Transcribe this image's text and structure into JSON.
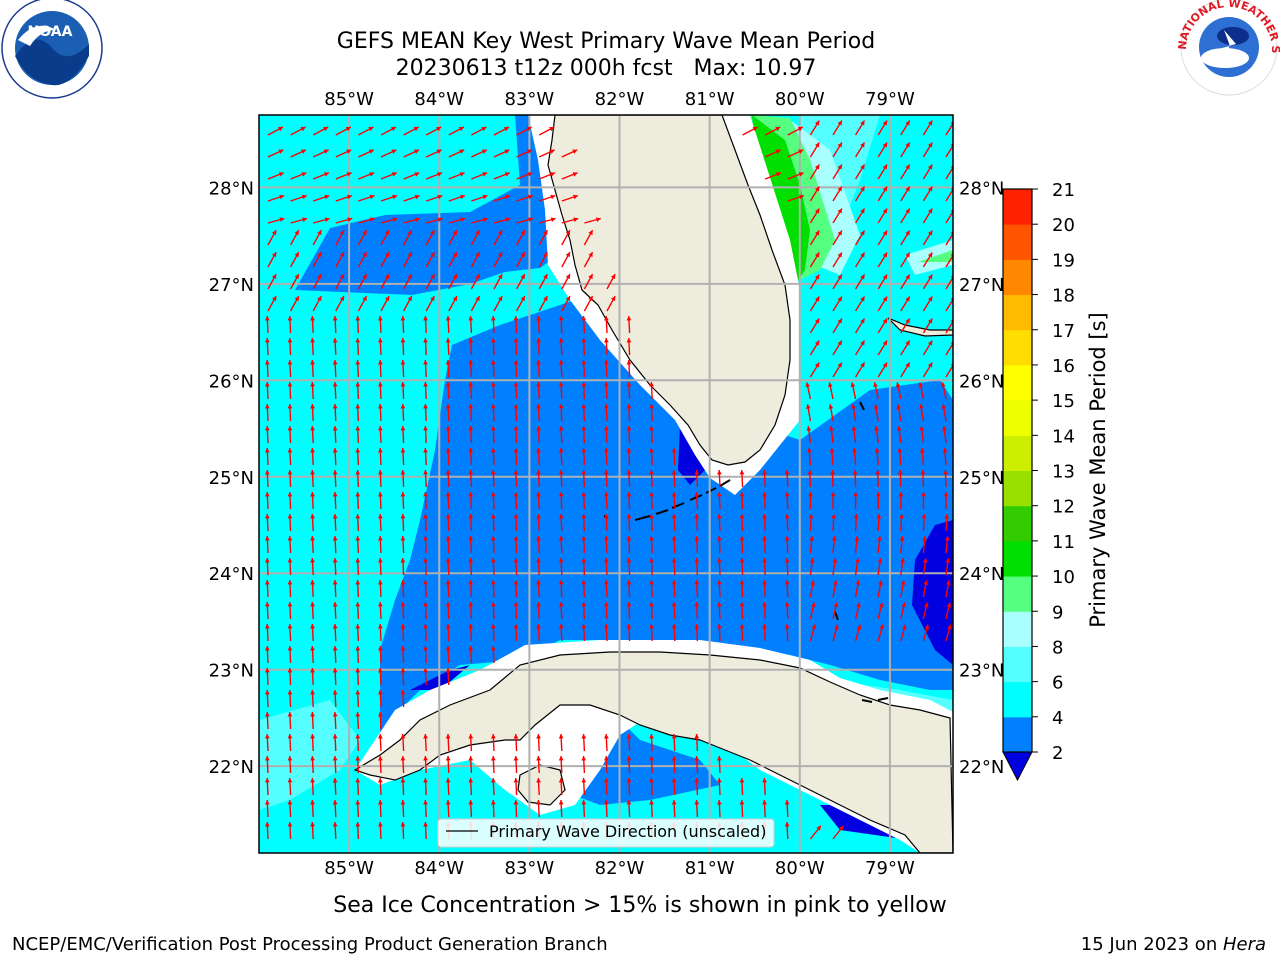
{
  "header": {
    "title_line1": "GEFS MEAN Key West Primary Wave Mean Period",
    "title_line2": "20230613 t12z 000h fcst   Max: 10.97",
    "left_logo_text": "NOAA",
    "right_logo_text": "NATIONAL WEATHER SERVICE"
  },
  "footer": {
    "sea_ice_note": "Sea Ice Concentration > 15% is shown in pink to yellow",
    "credit": "NCEP/EMC/Verification Post Processing Product Generation Branch",
    "date_prefix": "15 Jun 2023 on ",
    "date_host": "Hera"
  },
  "legend": {
    "label": "Primary Wave Direction (unscaled)"
  },
  "colors": {
    "land": "#eeeddd",
    "coast": "#000000",
    "grid": "#b0b0b0",
    "arrow": "#ff0000",
    "band_2_4": "#0080ff",
    "band_under_2": "#0000e0",
    "band_4_6": "#00ffff",
    "band_6_8": "#55ffff",
    "band_8_9": "#aaffff",
    "band_9_10": "#55ff80",
    "band_10_11": "#00e000"
  },
  "chart_data": {
    "type": "heatmap",
    "title": "GEFS MEAN Key West Primary Wave Mean Period",
    "subtitle": "20230613 t12z 000h fcst   Max: 10.97",
    "max_value": 10.97,
    "x_ticks": [
      "85°W",
      "84°W",
      "83°W",
      "82°W",
      "81°W",
      "80°W",
      "79°W"
    ],
    "y_ticks": [
      "28°N",
      "27°N",
      "26°N",
      "25°N",
      "24°N",
      "23°N",
      "22°N"
    ],
    "xlim_lon": [
      -86.0,
      -78.3
    ],
    "ylim_lat": [
      21.1,
      28.75
    ],
    "grid": true,
    "colorbar": {
      "label": "Primary Wave Mean Period [s]",
      "levels": [
        2,
        4,
        6,
        8,
        9,
        10,
        11,
        12,
        13,
        14,
        15,
        16,
        17,
        18,
        19,
        20,
        21
      ],
      "tick_labels": [
        "2",
        "4",
        "6",
        "8",
        "9",
        "10",
        "11",
        "12",
        "13",
        "14",
        "15",
        "16",
        "17",
        "18",
        "19",
        "20",
        "21"
      ],
      "colors": [
        "#0080ff",
        "#00ffff",
        "#55ffff",
        "#aaffff",
        "#55ff80",
        "#00e000",
        "#33cc00",
        "#99e000",
        "#ccee00",
        "#eeff00",
        "#ffff00",
        "#ffdd00",
        "#ffbb00",
        "#ff8800",
        "#ff5500",
        "#ff2200"
      ],
      "under_color": "#0000e0",
      "extend": "min"
    },
    "legend": {
      "entry": "Primary Wave Direction (unscaled)",
      "placement": "bottom-center"
    }
  }
}
